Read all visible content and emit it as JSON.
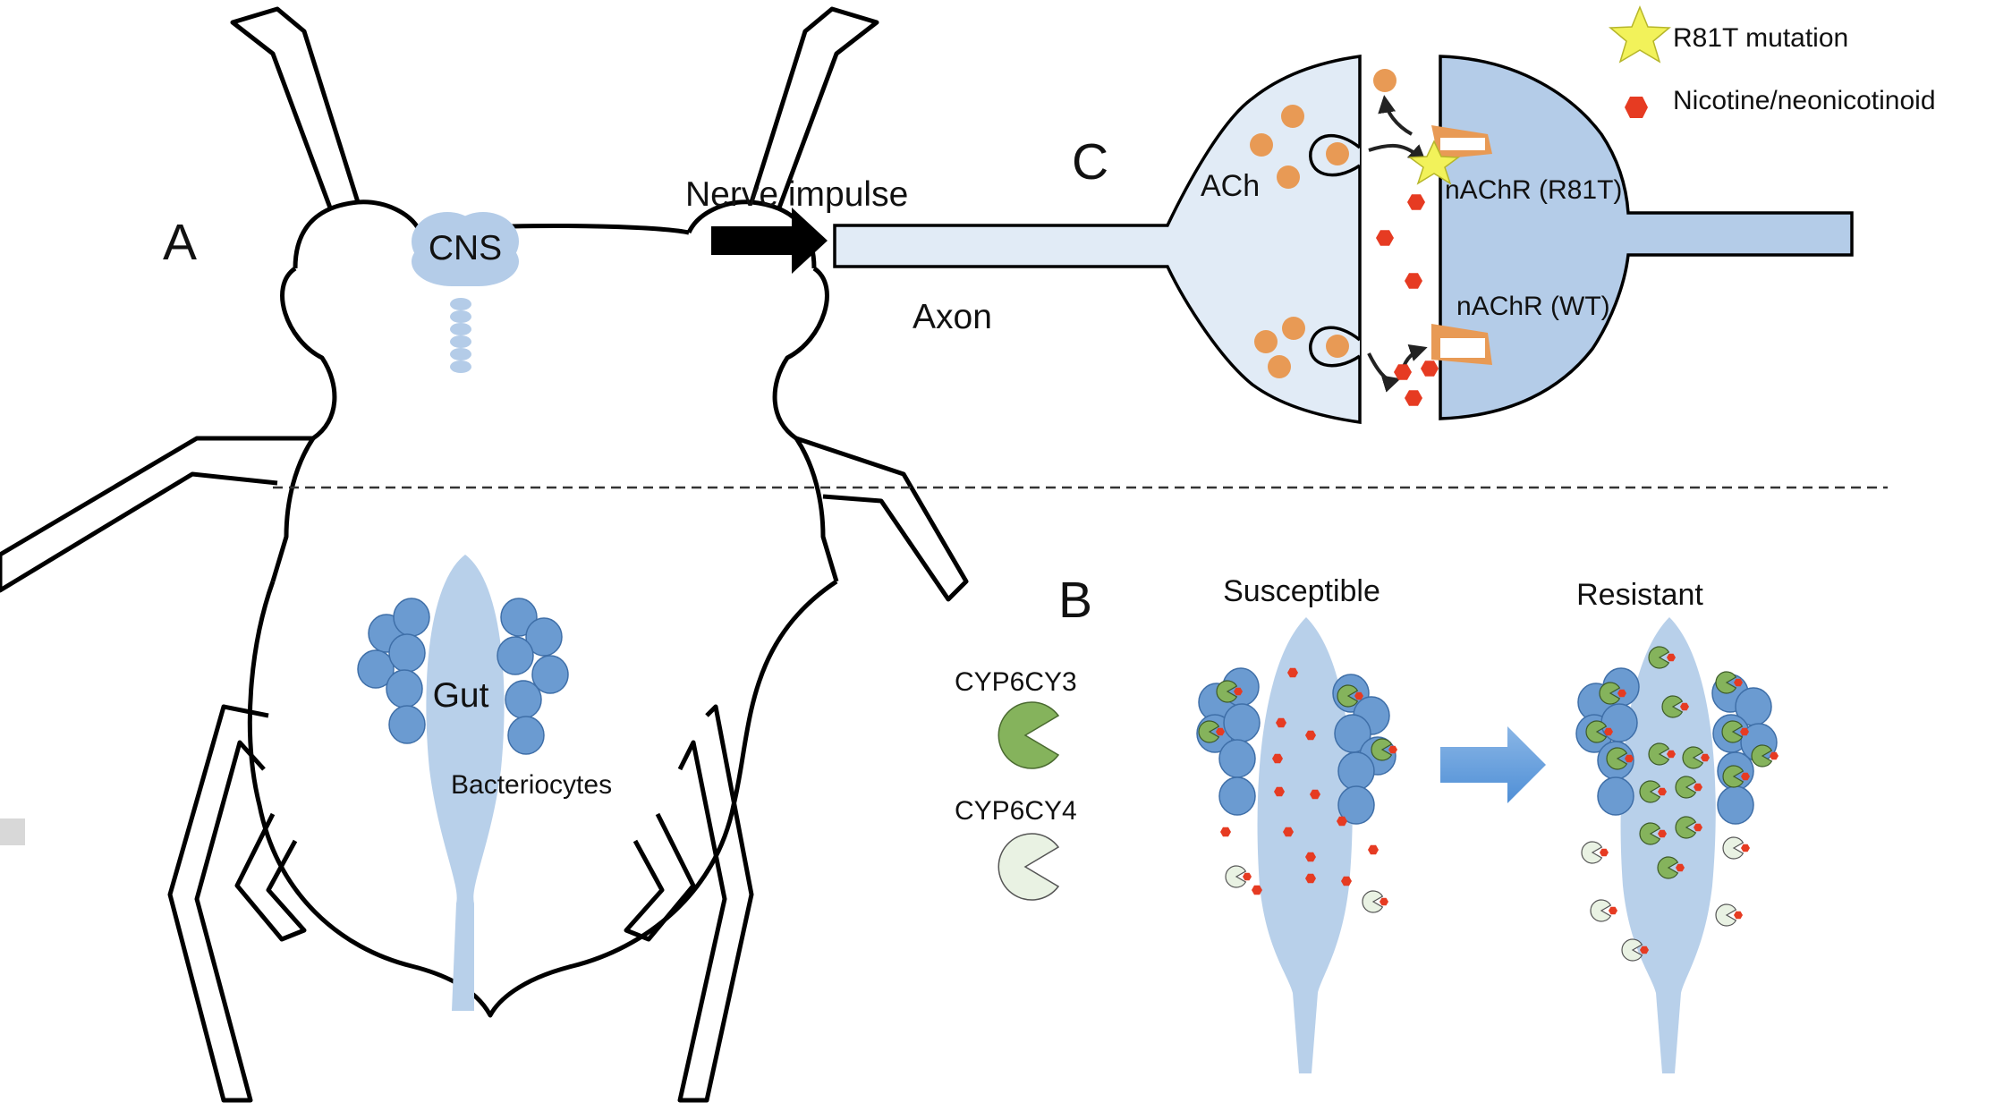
{
  "panels": {
    "a": "A",
    "b": "B",
    "c": "C"
  },
  "insect": {
    "cns": "CNS",
    "gut": "Gut",
    "bacteriocytes": "Bacteriocytes"
  },
  "synapse": {
    "nerve_impulse": "Nerve impulse",
    "axon": "Axon",
    "ach": "ACh",
    "receptor_mutant": "nAChR (R81T)",
    "receptor_wt": "nAChR (WT)"
  },
  "legend": {
    "mutation": "R81T mutation",
    "nicotine": "Nicotine/neonicotinoid",
    "cyp3": "CYP6CY3",
    "cyp4": "CYP6CY4"
  },
  "conditions": {
    "susceptible": "Susceptible",
    "resistant": "Resistant"
  },
  "colors": {
    "cell_blue": "#6b9bd1",
    "gut_blue": "#b8d0ea",
    "neuron_light": "#e1ebf6",
    "neuron_dark": "#b4cce8",
    "enzyme_green": "#85b35c",
    "enzyme_pale": "#e9f2e3",
    "ach_orange": "#e89a55",
    "drug_red": "#e63b22",
    "star_yellow": "#f2f25a"
  }
}
